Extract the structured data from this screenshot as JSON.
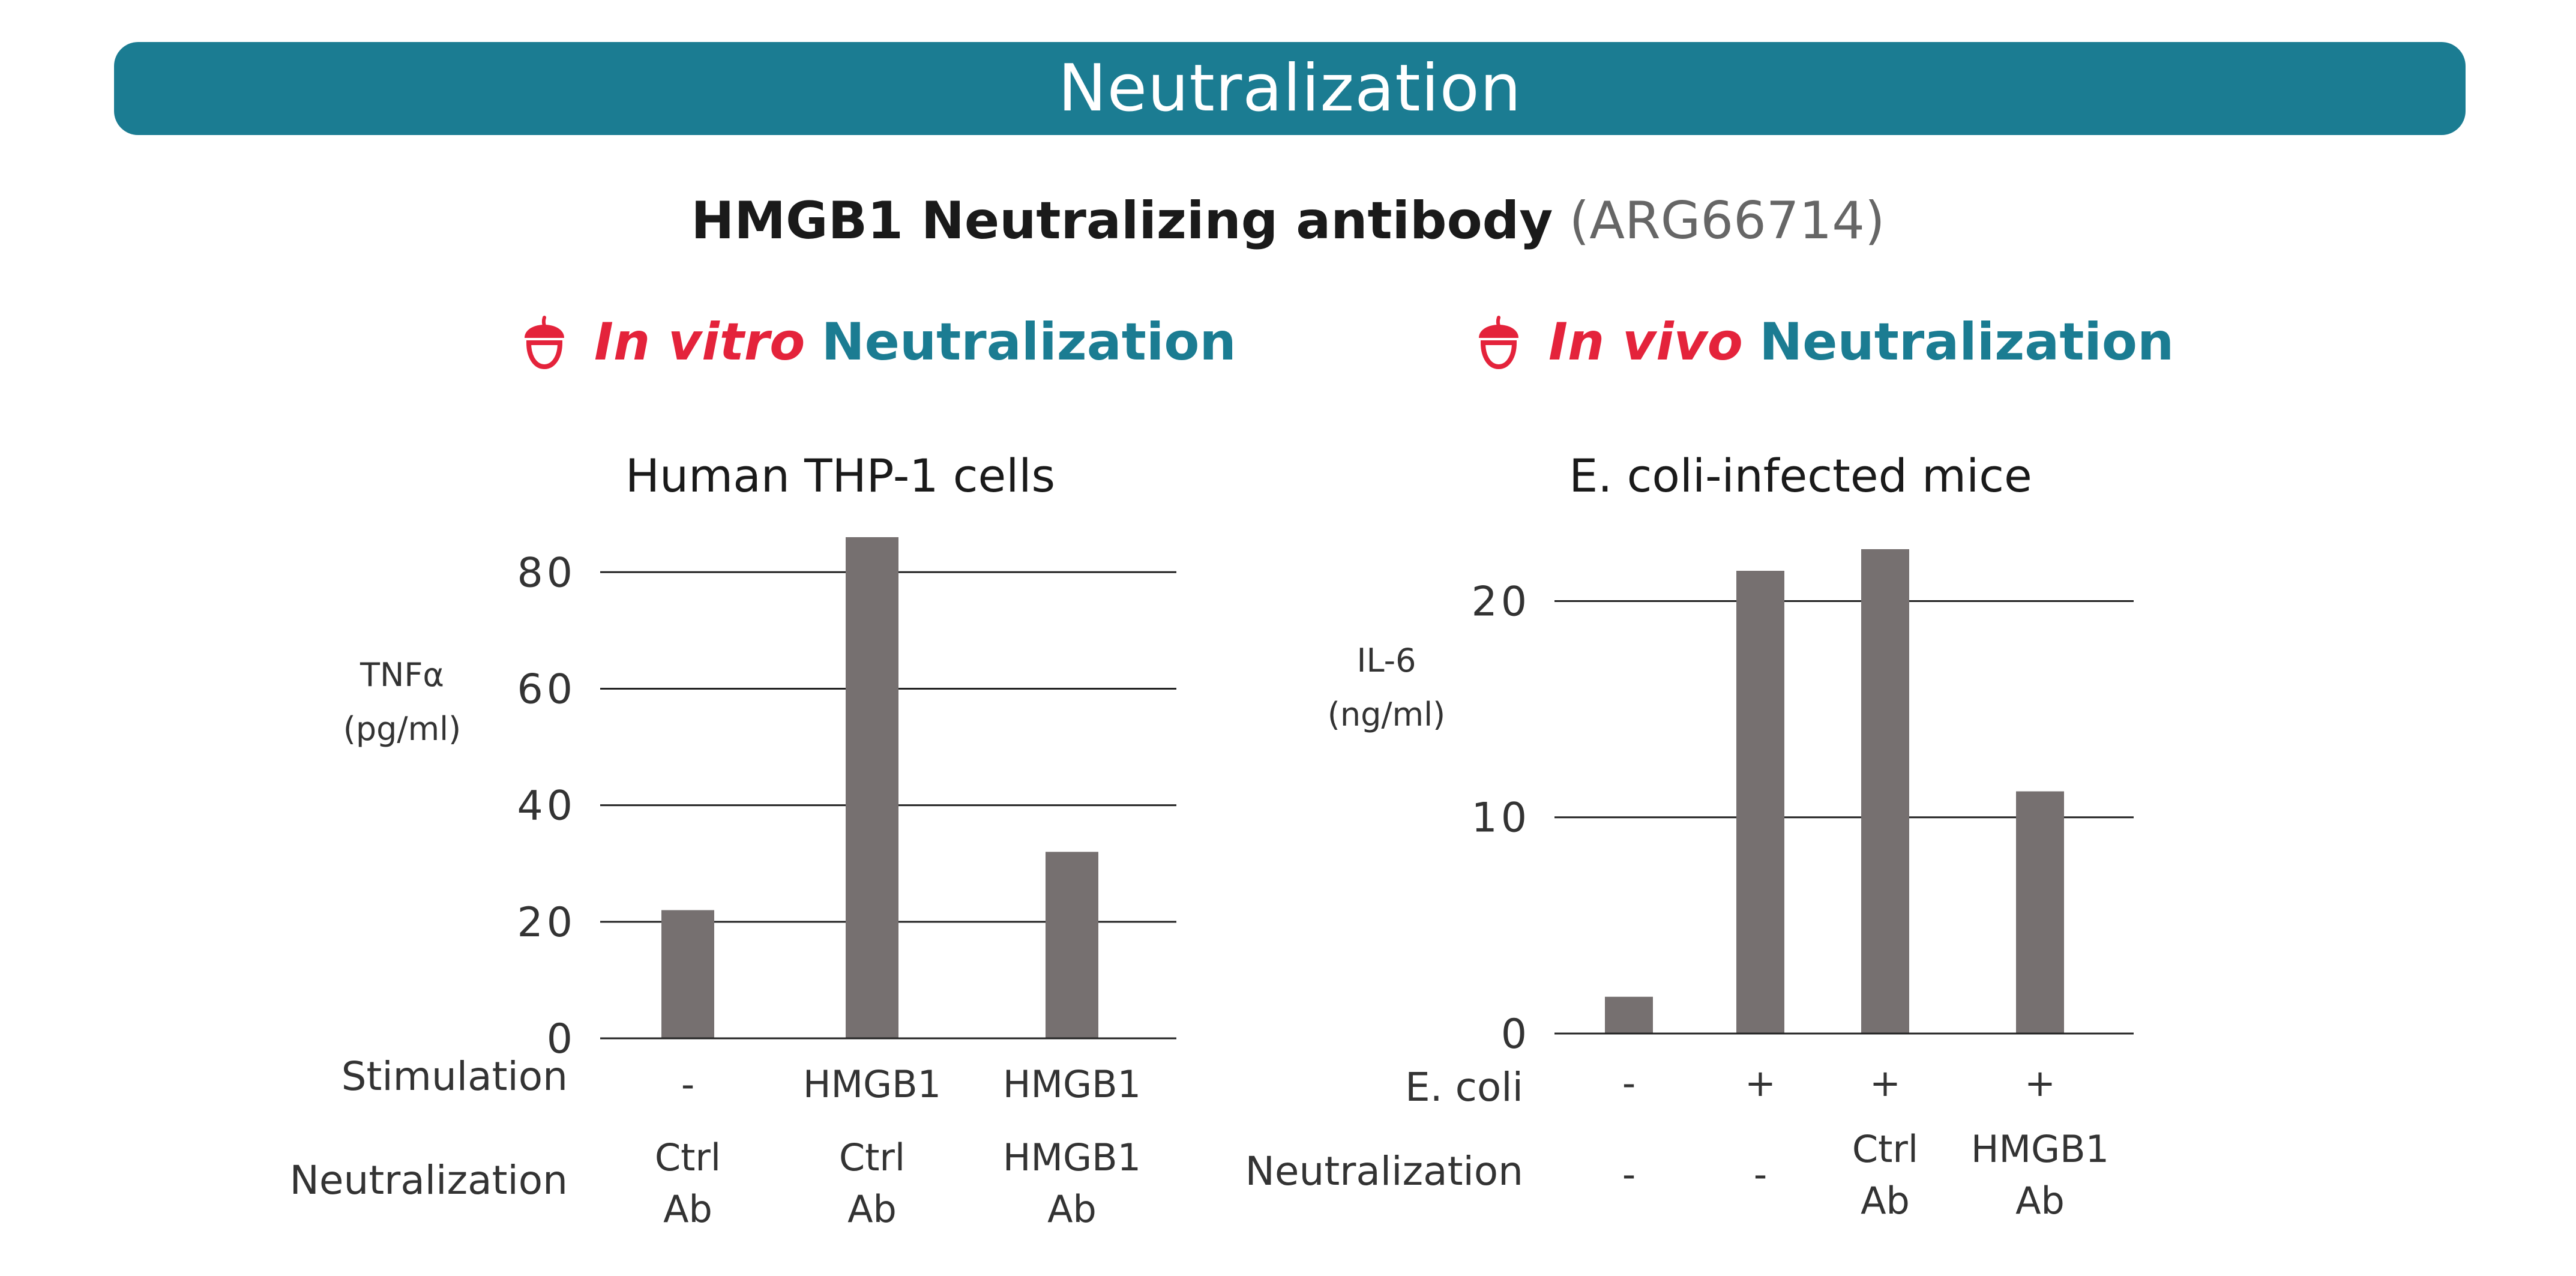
{
  "banner": {
    "title": "Neutralization"
  },
  "product": {
    "name": "HMGB1 Neutralizing antibody",
    "catalog": "(ARG66714)"
  },
  "left_section": {
    "emphasis": "In vitro",
    "label": "Neutralization"
  },
  "right_section": {
    "emphasis": "In vivo",
    "label": "Neutralization"
  },
  "left_chart": {
    "title": "Human THP-1 cells",
    "ylabel_line1": "TNFα",
    "ylabel_line2": "(pg/ml)",
    "row1_label": "Stimulation",
    "row2_label": "Neutralization",
    "stimulation": [
      "-",
      "HMGB1",
      "HMGB1"
    ],
    "neutralization": [
      [
        "Ctrl",
        "Ab"
      ],
      [
        "Ctrl",
        "Ab"
      ],
      [
        "HMGB1",
        "Ab"
      ]
    ]
  },
  "right_chart": {
    "title": "E. coli-infected mice",
    "ylabel_line1": "IL-6",
    "ylabel_line2": "(ng/ml)",
    "row1_label": "E. coli",
    "row2_label": "Neutralization",
    "ecoli": [
      "-",
      "+",
      "+",
      "+"
    ],
    "neutralization": [
      [
        "-",
        ""
      ],
      [
        "-",
        ""
      ],
      [
        "Ctrl",
        "Ab"
      ],
      [
        "HMGB1",
        "Ab"
      ]
    ]
  },
  "colors": {
    "banner": "#1b7c92",
    "accent_red": "#e4233b",
    "bar": "#767070",
    "teal": "#1b7c92"
  },
  "icons": {
    "section_marker": "acorn-icon"
  },
  "chart_data": [
    {
      "type": "bar",
      "title": "Human THP-1 cells",
      "ylabel": "TNFα (pg/ml)",
      "categories": [
        "- / Ctrl Ab",
        "HMGB1 / Ctrl Ab",
        "HMGB1 / HMGB1 Ab"
      ],
      "values": [
        22,
        86,
        32
      ],
      "ylim": [
        0,
        86
      ],
      "yticks": [
        0,
        20,
        40,
        60,
        80
      ],
      "grid": true
    },
    {
      "type": "bar",
      "title": "E. coli-infected mice",
      "ylabel": "IL-6 (ng/ml)",
      "categories": [
        "- / -",
        "+ / -",
        "+ / Ctrl Ab",
        "+ / HMGB1 Ab"
      ],
      "values": [
        1.7,
        21.4,
        22.4,
        11.2
      ],
      "ylim": [
        0,
        22.4
      ],
      "yticks": [
        0,
        10,
        20
      ],
      "grid": true
    }
  ]
}
